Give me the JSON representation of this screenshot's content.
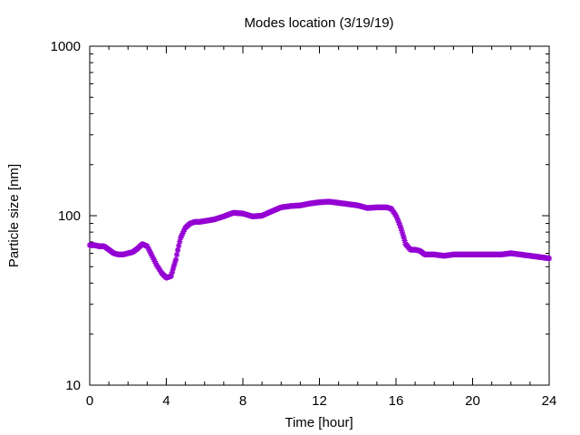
{
  "chart_data": {
    "type": "scatter",
    "title": "Modes location (3/19/19)",
    "xlabel": "Time [hour]",
    "ylabel": "Particle size [nm]",
    "xlim": [
      0,
      24
    ],
    "ylim": [
      10,
      1000
    ],
    "yscale": "log",
    "grid": false,
    "legend": "none",
    "x_ticks": [
      0,
      4,
      8,
      12,
      16,
      20,
      24
    ],
    "x_tick_labels": [
      "0",
      "4",
      "8",
      "12",
      "16",
      "20",
      "24"
    ],
    "y_ticks": [
      10,
      100,
      1000
    ],
    "y_tick_labels": [
      "10",
      "100",
      "1000"
    ],
    "marker": "star",
    "color": "#9400d3",
    "series": [
      {
        "x": [
          0.0,
          0.25,
          0.5,
          0.75,
          1.0,
          1.25,
          1.5,
          1.75,
          2.0,
          2.25,
          2.5,
          2.75,
          3.0,
          3.25,
          3.5,
          3.75,
          4.0,
          4.25,
          4.5,
          4.75,
          5.0,
          5.25,
          5.5,
          5.75,
          6.0,
          6.5,
          7.0,
          7.5,
          8.0,
          8.5,
          9.0,
          9.5,
          10.0,
          10.5,
          11.0,
          11.5,
          12.0,
          12.5,
          13.0,
          13.5,
          14.0,
          14.5,
          15.0,
          15.5,
          15.75,
          16.0,
          16.25,
          16.5,
          16.75,
          17.0,
          17.25,
          17.5,
          18.0,
          18.5,
          19.0,
          19.5,
          20.0,
          20.5,
          21.0,
          21.5,
          22.0,
          22.5,
          23.0,
          23.5,
          24.0
        ],
        "y": [
          67,
          67,
          66,
          66,
          63,
          60,
          59,
          59,
          60,
          61,
          64,
          68,
          66,
          58,
          51,
          46,
          43,
          44,
          55,
          74,
          85,
          90,
          92,
          92,
          93,
          95,
          99,
          104,
          103,
          99,
          100,
          106,
          112,
          114,
          115,
          118,
          120,
          121,
          119,
          117,
          115,
          111,
          112,
          112,
          110,
          100,
          85,
          68,
          63,
          63,
          62,
          59,
          59,
          58,
          59,
          59,
          59,
          59,
          59,
          59,
          60,
          59,
          58,
          57,
          56
        ]
      }
    ]
  }
}
